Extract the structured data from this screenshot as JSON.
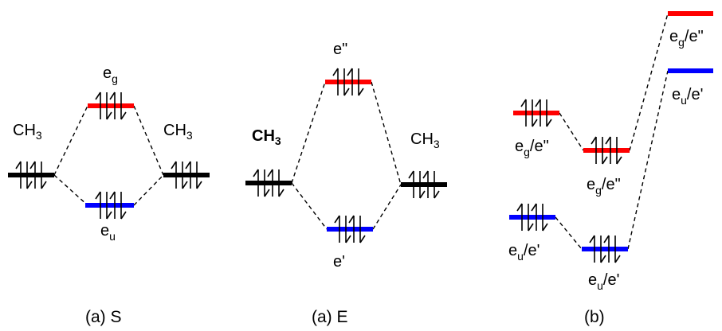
{
  "colors": {
    "black_level": "#000000",
    "red_level": "#ff0000",
    "blue_level": "#0000ff"
  },
  "panel_s": {
    "caption": "(a) S",
    "left_label": {
      "main": "CH",
      "sub": "3"
    },
    "right_label": {
      "main": "CH",
      "sub": "3"
    },
    "upper_label": {
      "main": "e",
      "sub": "g"
    },
    "lower_label": {
      "main": "e",
      "sub": "u"
    }
  },
  "panel_e": {
    "caption": "(a) E",
    "left_label": {
      "main": "CH",
      "sub": "3"
    },
    "right_label": {
      "main": "CH",
      "sub": "3"
    },
    "upper_label": {
      "main": "e\""
    },
    "lower_label": {
      "main": "e'"
    }
  },
  "panel_b": {
    "caption": "(b)",
    "label_upper_left": {
      "main": "e",
      "sub": "g",
      "rest": "/e\""
    },
    "label_upper_mid": {
      "main": "e",
      "sub": "g",
      "rest": "/e\""
    },
    "label_upper_right": {
      "main": "e",
      "sub": "g",
      "rest": "/e\""
    },
    "label_lower_left": {
      "main": "e",
      "sub": "u",
      "rest": "/e'"
    },
    "label_lower_mid": {
      "main": "e",
      "sub": "u",
      "rest": "/e'"
    },
    "label_lower_right": {
      "main": "e",
      "sub": "u",
      "rest": "/e'"
    }
  }
}
